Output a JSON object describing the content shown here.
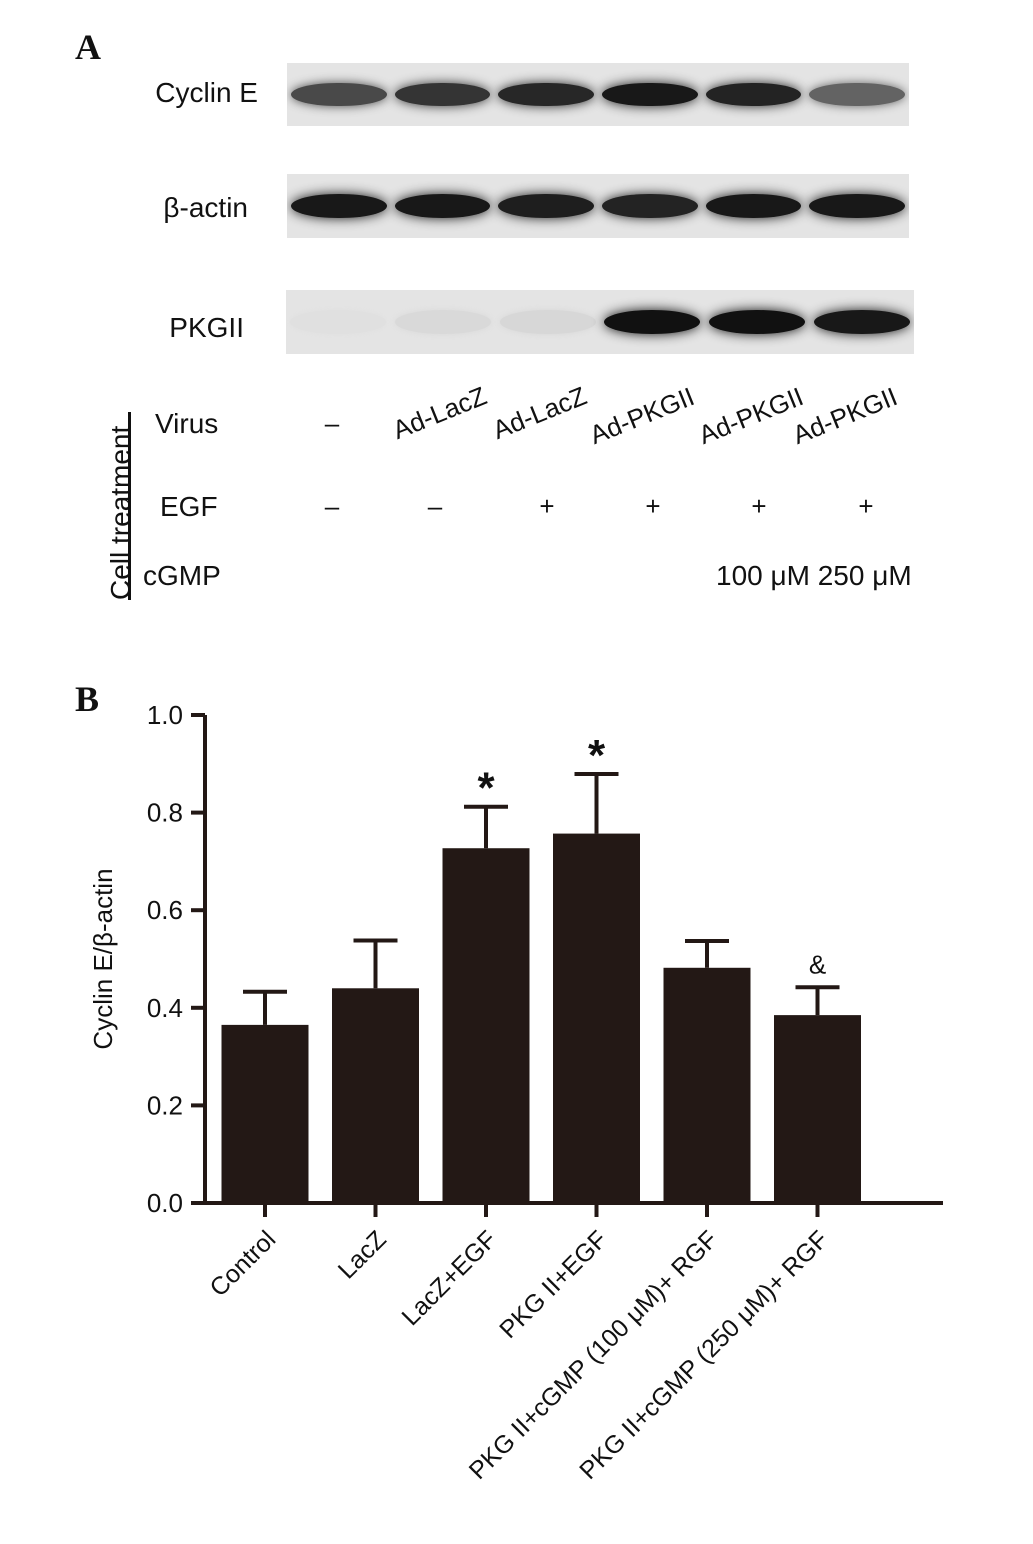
{
  "panel_a": {
    "letter": "A",
    "blots": [
      {
        "label": "Cyclin E",
        "intensities": [
          0.72,
          0.82,
          0.88,
          0.95,
          0.9,
          0.6
        ]
      },
      {
        "label": "β-actin",
        "intensities": [
          0.95,
          0.95,
          0.92,
          0.9,
          0.95,
          0.95
        ]
      },
      {
        "label": "PKGII",
        "intensities": [
          0.02,
          0.05,
          0.06,
          0.98,
          0.98,
          0.95
        ]
      }
    ],
    "treatment": {
      "group_label": "Cell treatment",
      "virus_label": "Virus",
      "egf_label": "EGF",
      "cgmp_label": "cGMP",
      "virus": [
        "–",
        "Ad-LacZ",
        "Ad-LacZ",
        "Ad-PKGII",
        "Ad-PKGII",
        "Ad-PKGII"
      ],
      "egf": [
        "–",
        "–",
        "+",
        "+",
        "+",
        "+"
      ],
      "cgmp_values": "100 μM 250 μM"
    }
  },
  "panel_b": {
    "letter": "B"
  },
  "chart_data": {
    "type": "bar",
    "categories": [
      "Control",
      "LacZ",
      "LacZ+EGF",
      "PKG II+EGF",
      "PKG II+cGMP (100 μM)+ RGF",
      "PKG II+cGMP (250 μM)+ RGF"
    ],
    "values": [
      0.365,
      0.44,
      0.727,
      0.757,
      0.482,
      0.385
    ],
    "errors": [
      0.068,
      0.098,
      0.085,
      0.122,
      0.055,
      0.057
    ],
    "annotations": [
      "",
      "",
      "*",
      "*",
      "",
      "&"
    ],
    "ylabel": "Cyclin E/β-actin",
    "ylim": [
      0,
      1.0
    ],
    "yticks": [
      "0.0",
      "0.2",
      "0.4",
      "0.6",
      "0.8",
      "1.0"
    ],
    "bar_color": "#231815",
    "grid": false
  }
}
